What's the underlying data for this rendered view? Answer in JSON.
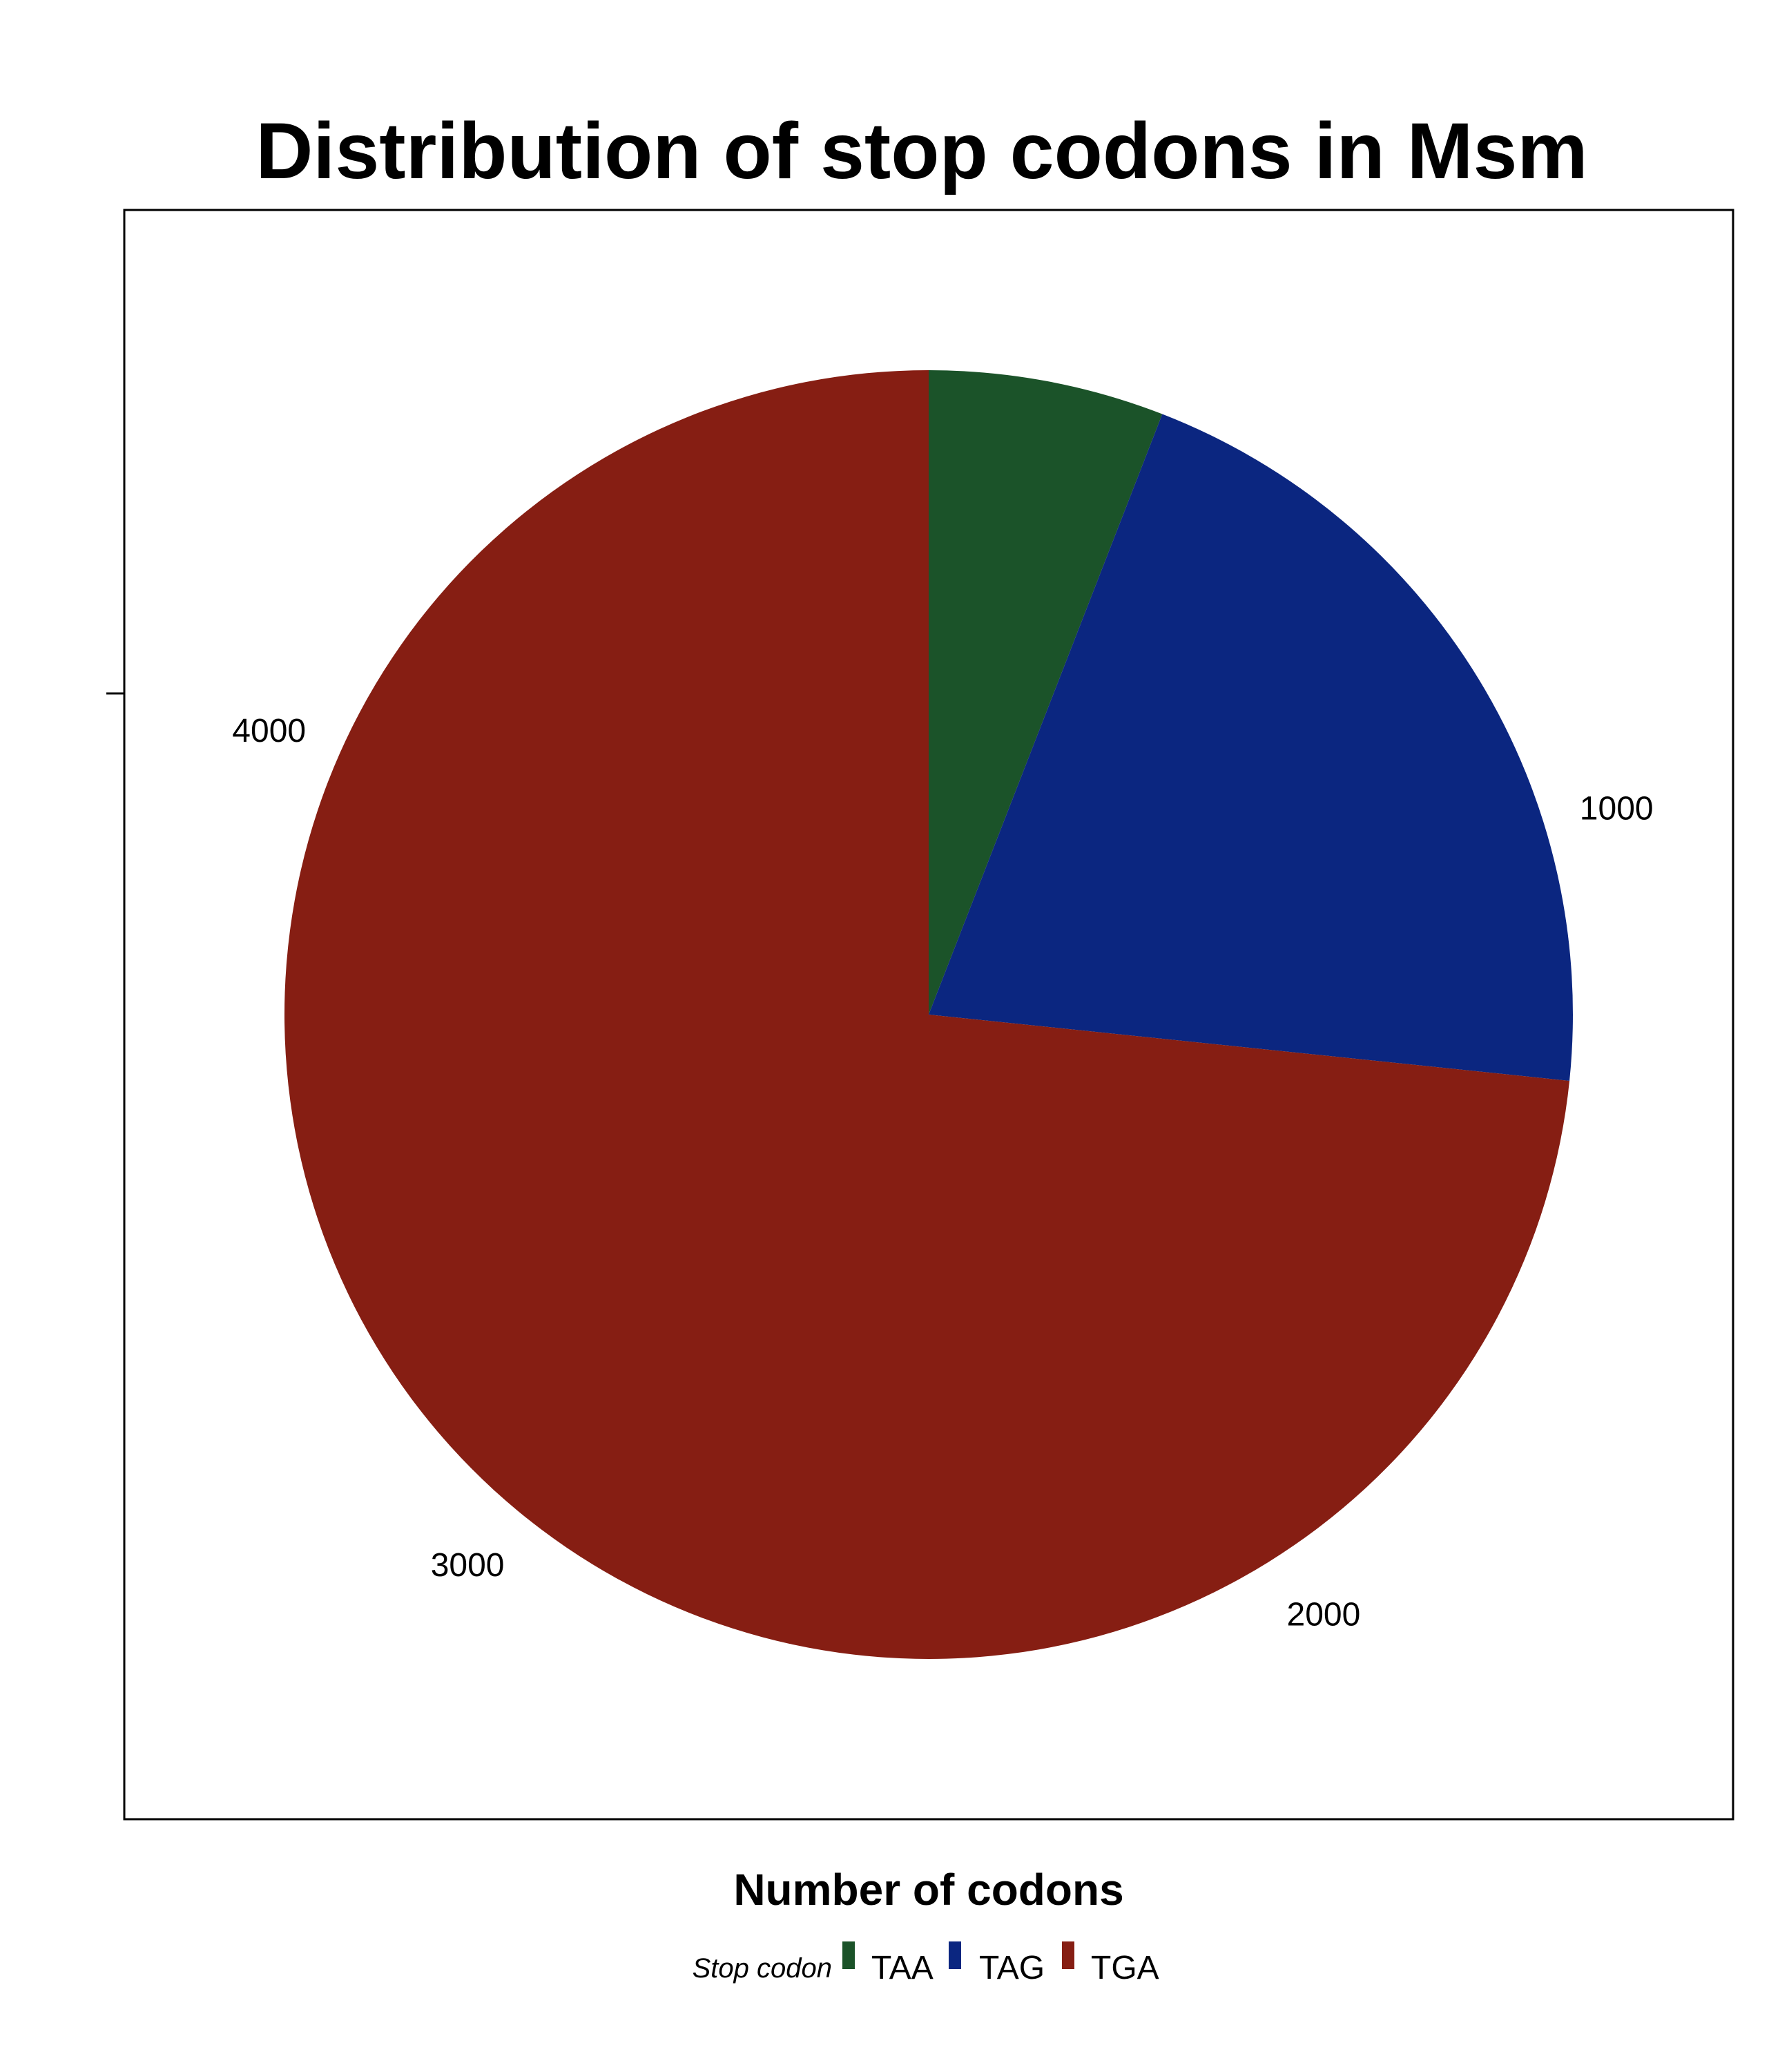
{
  "chart_data": {
    "type": "pie",
    "title": "Distribution of stop codons in Msm",
    "xlabel": "Number of codons",
    "legend_title": "Stop codon",
    "legend_position": "bottom",
    "slices": [
      {
        "label": "TAA",
        "value": 290,
        "color": "#1b5329"
      },
      {
        "label": "TAG",
        "value": 1018,
        "color": "#0b2680"
      },
      {
        "label": "TGA",
        "value": 3602,
        "color": "#861e13"
      }
    ],
    "ticks": [
      1000,
      2000,
      3000,
      4000
    ],
    "scale_max": 4910,
    "start": "top",
    "direction": "clockwise",
    "grid": false
  }
}
